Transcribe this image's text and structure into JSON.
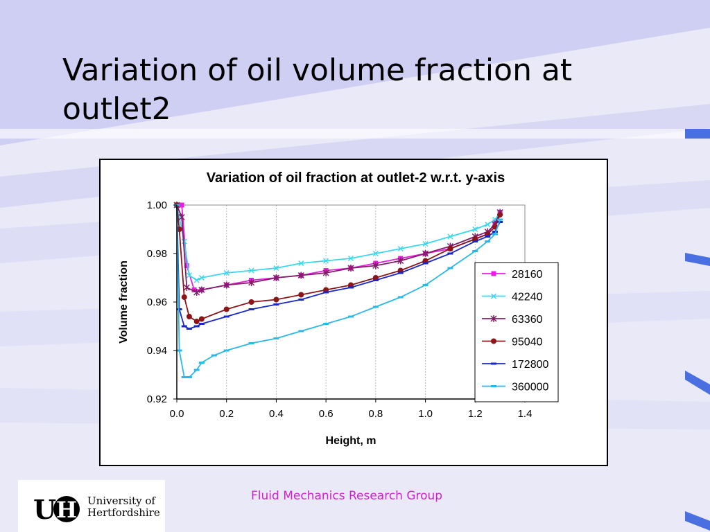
{
  "slide": {
    "title": "Variation of oil volume fraction at outlet2",
    "footer": "Fluid Mechanics Research Group",
    "logo_line1": "University of",
    "logo_line2": "Hertfordshire",
    "logo_letter_u": "U",
    "logo_letter_h": "H"
  },
  "chart_data": {
    "type": "line",
    "title": "Variation of oil fraction at outlet-2 w.r.t. y-axis",
    "xlabel": "Height, m",
    "ylabel": "Volume fraction",
    "xlim": [
      0,
      1.4
    ],
    "ylim": [
      0.92,
      1.0
    ],
    "xticks": [
      "0.0",
      "0.2",
      "0.4",
      "0.6",
      "0.8",
      "1.0",
      "1.2",
      "1.4"
    ],
    "yticks": [
      "0.92",
      "0.94",
      "0.96",
      "0.98",
      "1.00"
    ],
    "grid": "vertical",
    "legend": "right",
    "series": [
      {
        "name": "28160",
        "color": "#e81ee0",
        "marker": "square",
        "x": [
          0.0,
          0.02,
          0.04,
          0.07,
          0.1,
          0.2,
          0.3,
          0.4,
          0.5,
          0.6,
          0.7,
          0.8,
          0.9,
          1.0,
          1.1,
          1.2,
          1.25,
          1.28,
          1.3
        ],
        "y": [
          1.0,
          1.0,
          0.975,
          0.965,
          0.965,
          0.967,
          0.969,
          0.97,
          0.971,
          0.973,
          0.974,
          0.976,
          0.978,
          0.98,
          0.982,
          0.986,
          0.988,
          0.993,
          0.997
        ]
      },
      {
        "name": "42240",
        "color": "#37d8ee",
        "marker": "x",
        "x": [
          0.0,
          0.03,
          0.05,
          0.08,
          0.1,
          0.2,
          0.3,
          0.4,
          0.5,
          0.6,
          0.7,
          0.8,
          0.9,
          1.0,
          1.1,
          1.2,
          1.25,
          1.28,
          1.3
        ],
        "y": [
          1.0,
          0.985,
          0.971,
          0.969,
          0.97,
          0.972,
          0.973,
          0.974,
          0.976,
          0.977,
          0.978,
          0.98,
          0.982,
          0.984,
          0.987,
          0.99,
          0.992,
          0.994,
          0.997
        ]
      },
      {
        "name": "63360",
        "color": "#801e66",
        "marker": "star",
        "x": [
          0.0,
          0.02,
          0.04,
          0.08,
          0.1,
          0.2,
          0.3,
          0.4,
          0.5,
          0.6,
          0.7,
          0.8,
          0.9,
          1.0,
          1.1,
          1.2,
          1.25,
          1.28,
          1.3
        ],
        "y": [
          1.0,
          0.995,
          0.966,
          0.964,
          0.965,
          0.967,
          0.968,
          0.97,
          0.971,
          0.972,
          0.974,
          0.975,
          0.977,
          0.98,
          0.983,
          0.987,
          0.989,
          0.992,
          0.997
        ]
      },
      {
        "name": "95040",
        "color": "#8b1518",
        "marker": "circle",
        "x": [
          0.0,
          0.01,
          0.03,
          0.05,
          0.08,
          0.1,
          0.2,
          0.3,
          0.4,
          0.5,
          0.6,
          0.7,
          0.8,
          0.9,
          1.0,
          1.1,
          1.2,
          1.25,
          1.28,
          1.3
        ],
        "y": [
          1.0,
          0.99,
          0.962,
          0.954,
          0.952,
          0.953,
          0.957,
          0.96,
          0.961,
          0.963,
          0.965,
          0.967,
          0.97,
          0.973,
          0.977,
          0.982,
          0.986,
          0.988,
          0.991,
          0.996
        ]
      },
      {
        "name": "172800",
        "color": "#1828c8",
        "marker": "dash",
        "x": [
          0.0,
          0.01,
          0.03,
          0.05,
          0.08,
          0.1,
          0.2,
          0.3,
          0.4,
          0.5,
          0.6,
          0.7,
          0.8,
          0.9,
          1.0,
          1.1,
          1.2,
          1.25,
          1.28,
          1.3
        ],
        "y": [
          1.0,
          0.957,
          0.95,
          0.949,
          0.95,
          0.951,
          0.954,
          0.957,
          0.959,
          0.961,
          0.964,
          0.966,
          0.969,
          0.972,
          0.976,
          0.98,
          0.985,
          0.987,
          0.989,
          0.993
        ]
      },
      {
        "name": "360000",
        "color": "#2ab8e8",
        "marker": "dash",
        "x": [
          0.0,
          0.01,
          0.03,
          0.05,
          0.08,
          0.1,
          0.15,
          0.2,
          0.3,
          0.4,
          0.5,
          0.6,
          0.7,
          0.8,
          0.9,
          1.0,
          1.1,
          1.2,
          1.25,
          1.28,
          1.3
        ],
        "y": [
          1.0,
          0.94,
          0.929,
          0.929,
          0.932,
          0.935,
          0.938,
          0.94,
          0.943,
          0.945,
          0.948,
          0.951,
          0.954,
          0.958,
          0.962,
          0.967,
          0.974,
          0.981,
          0.985,
          0.988,
          0.994
        ]
      }
    ]
  }
}
